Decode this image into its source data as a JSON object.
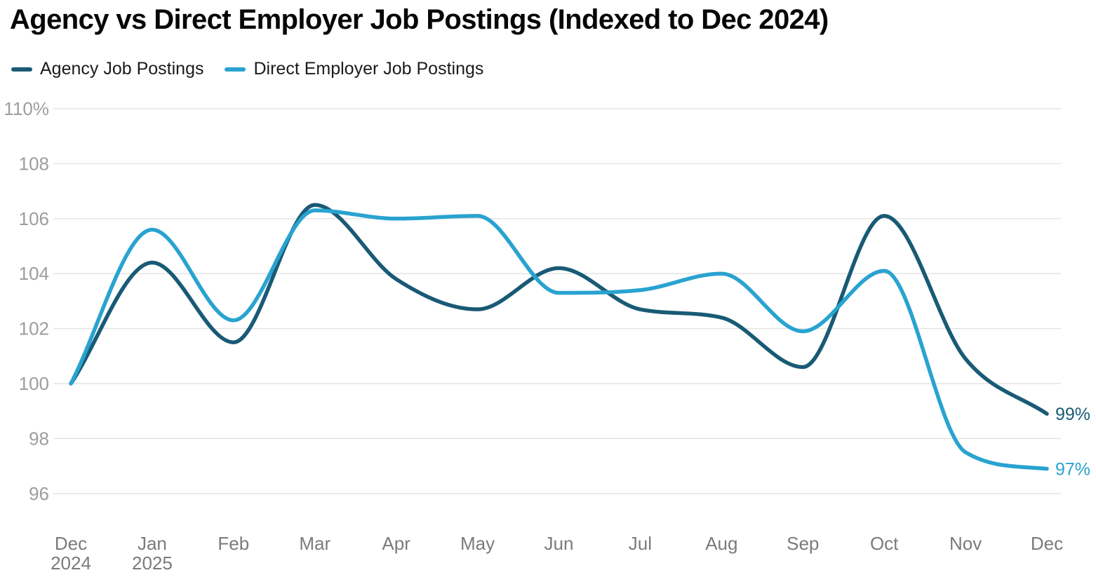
{
  "chart_data": {
    "type": "line",
    "title": "Agency vs Direct Employer Job Postings (Indexed to Dec 2024)",
    "xlabel": "",
    "ylabel": "",
    "ylim": [
      96,
      110
    ],
    "grid": "horizontal",
    "legend_position": "top-left",
    "background_color": "#ffffff",
    "gridline_color": "#e3e3e3",
    "y_axis_text_color": "#9d9d9d",
    "x_axis_text_color": "#7b7b7b",
    "yticks": [
      {
        "value": 110,
        "label": "110%"
      },
      {
        "value": 108,
        "label": "108"
      },
      {
        "value": 106,
        "label": "106"
      },
      {
        "value": 104,
        "label": "104"
      },
      {
        "value": 102,
        "label": "102"
      },
      {
        "value": 100,
        "label": "100"
      },
      {
        "value": 98,
        "label": "98"
      },
      {
        "value": 96,
        "label": "96"
      }
    ],
    "categories": [
      [
        "Dec",
        "2024"
      ],
      [
        "Jan",
        "2025"
      ],
      [
        "Feb"
      ],
      [
        "Mar"
      ],
      [
        "Apr"
      ],
      [
        "May"
      ],
      [
        "Jun"
      ],
      [
        "Jul"
      ],
      [
        "Aug"
      ],
      [
        "Sep"
      ],
      [
        "Oct"
      ],
      [
        "Nov"
      ],
      [
        "Dec"
      ]
    ],
    "series": [
      {
        "name": "Agency Job Postings",
        "color": "#195A75",
        "values": [
          100,
          104.4,
          101.5,
          106.5,
          103.8,
          102.7,
          104.2,
          102.7,
          102.4,
          100.6,
          106.1,
          100.9,
          98.9
        ],
        "end_label": "99%"
      },
      {
        "name": "Direct Employer Job Postings",
        "color": "#29A3D0",
        "values": [
          100,
          105.6,
          102.3,
          106.3,
          106.0,
          106.1,
          103.3,
          103.4,
          104.0,
          101.9,
          104.1,
          97.5,
          96.9
        ],
        "end_label": "97%"
      }
    ]
  }
}
